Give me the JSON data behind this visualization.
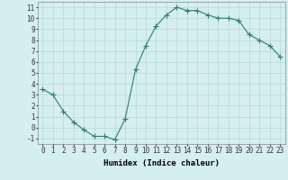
{
  "x": [
    0,
    1,
    2,
    3,
    4,
    5,
    6,
    7,
    8,
    9,
    10,
    11,
    12,
    13,
    14,
    15,
    16,
    17,
    18,
    19,
    20,
    21,
    22,
    23
  ],
  "y": [
    3.5,
    3.0,
    1.5,
    0.5,
    -0.2,
    -0.8,
    -0.8,
    -1.1,
    0.8,
    5.3,
    7.5,
    9.3,
    10.3,
    11.0,
    10.7,
    10.7,
    10.3,
    10.0,
    10.0,
    9.8,
    8.5,
    8.0,
    7.5,
    6.5
  ],
  "line_color": "#2e7d6e",
  "marker": "+",
  "marker_size": 4,
  "bg_color": "#d5eeee",
  "grid_color": "#b8d8d8",
  "xlabel": "Humidex (Indice chaleur)",
  "xlim": [
    -0.5,
    23.5
  ],
  "ylim": [
    -1.5,
    11.5
  ],
  "xticks": [
    0,
    1,
    2,
    3,
    4,
    5,
    6,
    7,
    8,
    9,
    10,
    11,
    12,
    13,
    14,
    15,
    16,
    17,
    18,
    19,
    20,
    21,
    22,
    23
  ],
  "yticks": [
    -1,
    0,
    1,
    2,
    3,
    4,
    5,
    6,
    7,
    8,
    9,
    10,
    11
  ],
  "xlabel_fontsize": 6.5,
  "tick_fontsize": 5.5,
  "lw": 0.8
}
